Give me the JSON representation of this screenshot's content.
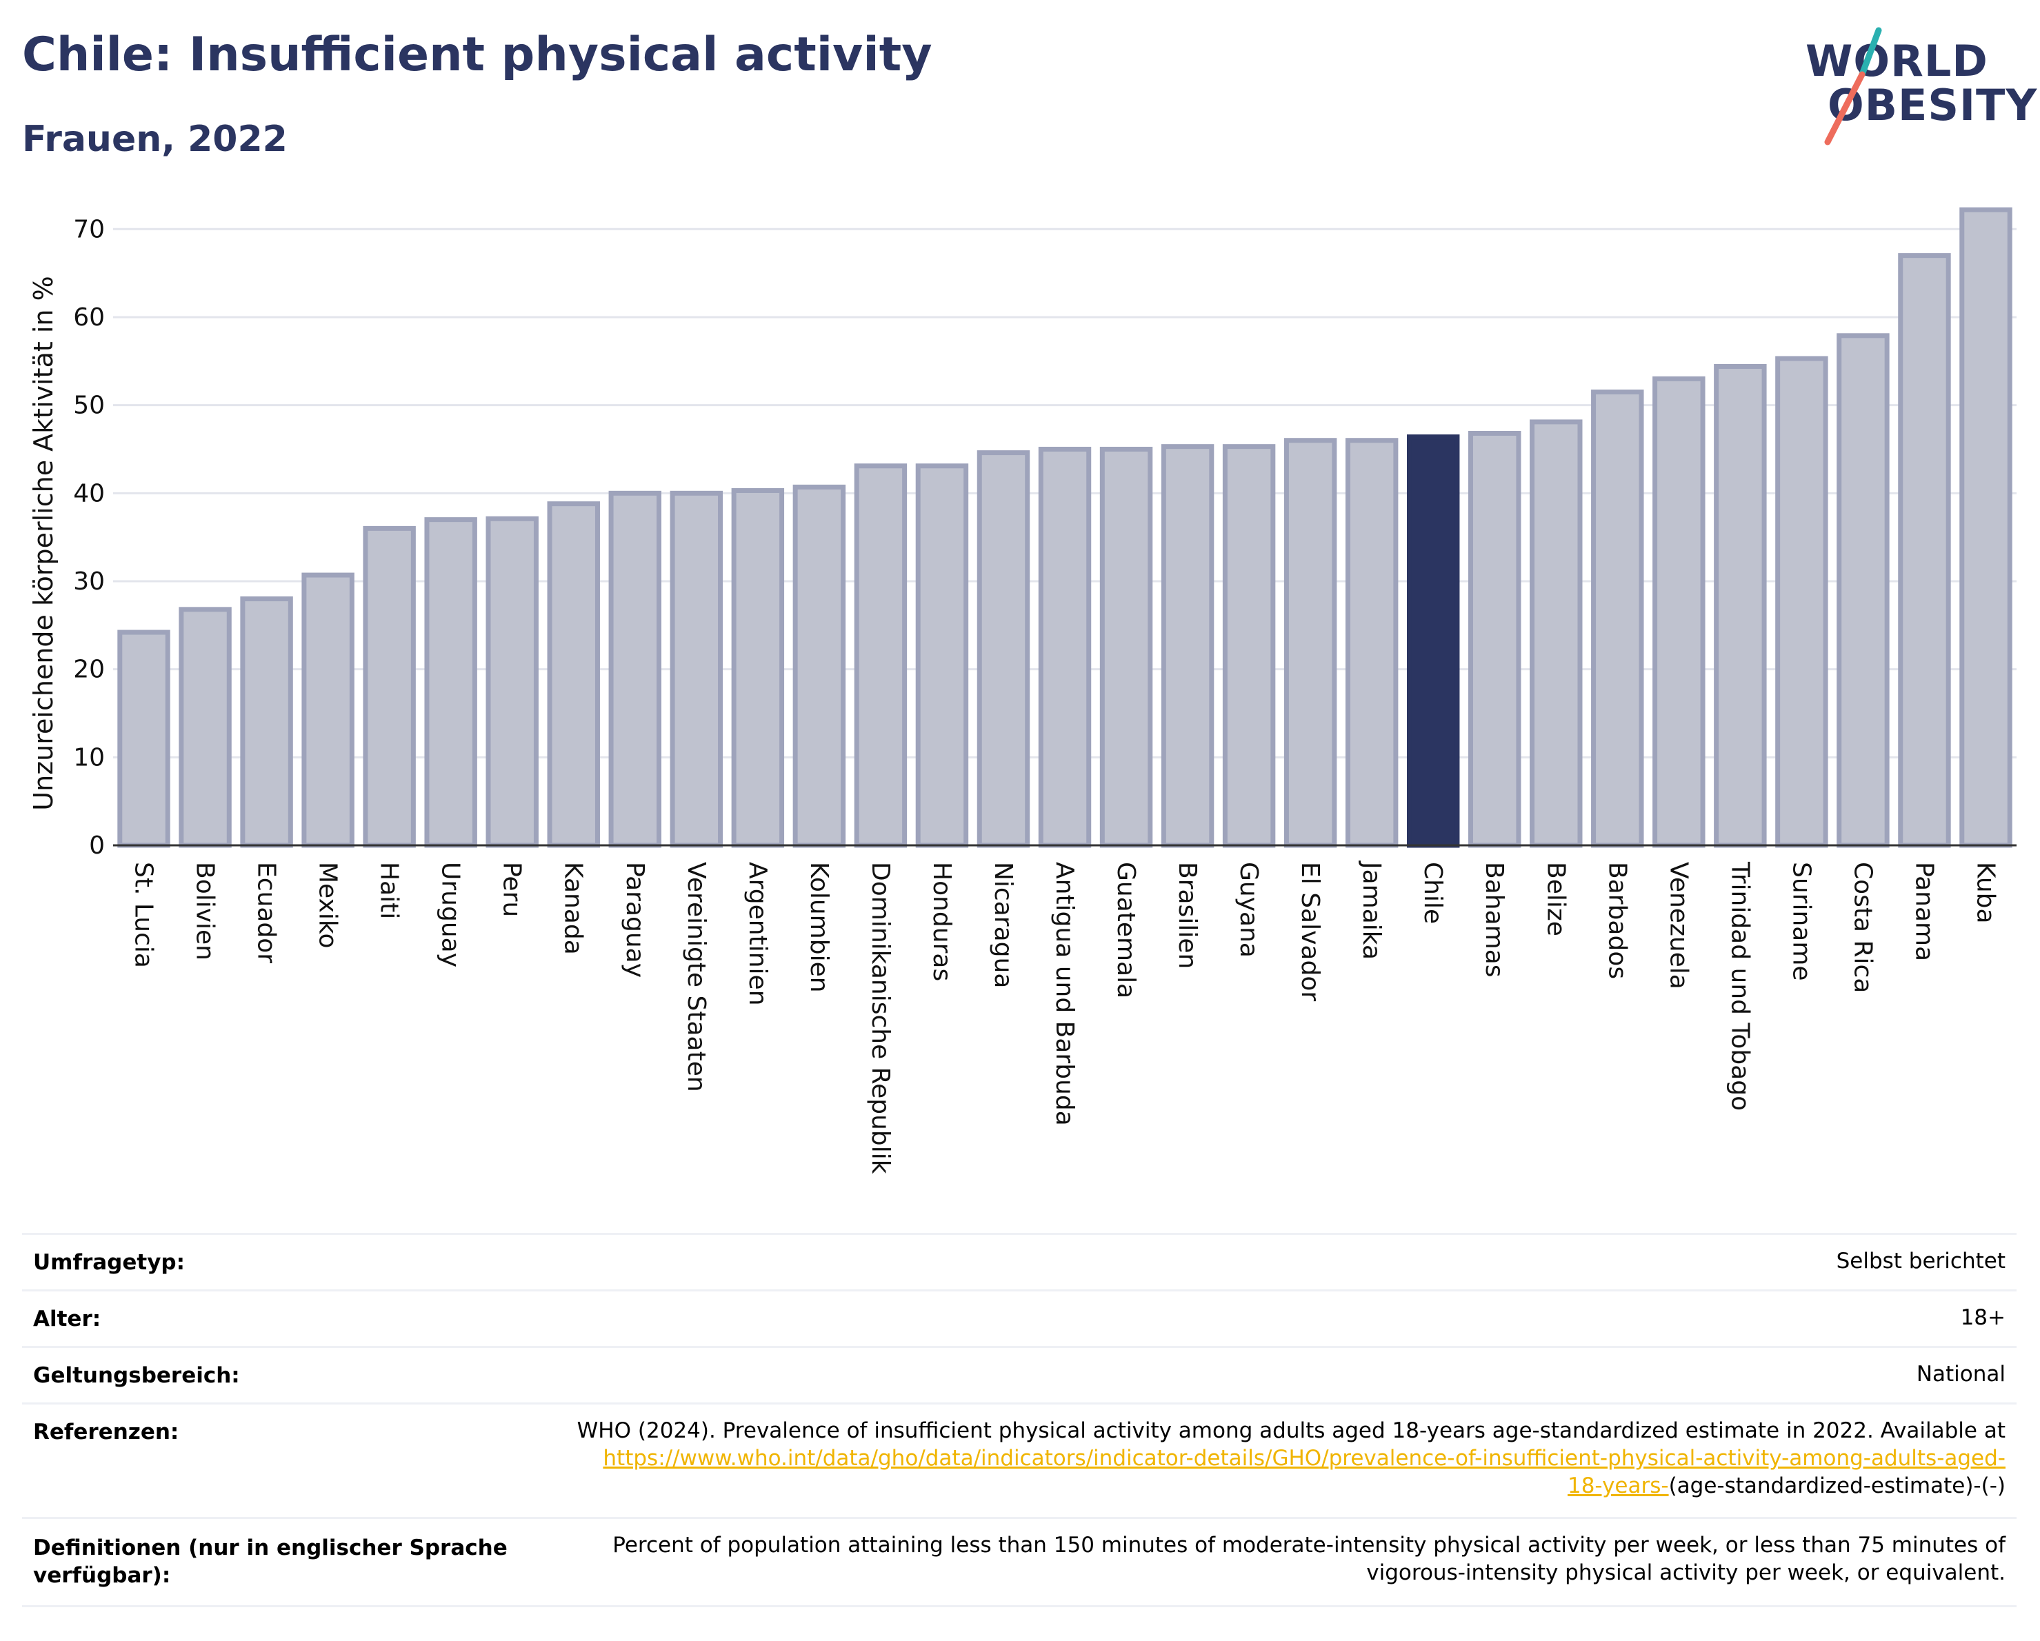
{
  "header": {
    "title": "Chile: Insufficient physical activity",
    "subtitle": "Frauen, 2022"
  },
  "logo": {
    "line1": "WORLD",
    "line2": "OBESITY"
  },
  "colors": {
    "bar": "#bfc2cf",
    "bar_edge": "#9ea3bb",
    "highlight": "#2b3561",
    "grid": "#e3e5ec",
    "title": "#2b3561"
  },
  "chart_data": {
    "type": "bar",
    "title": "Chile: Insufficient physical activity",
    "subtitle": "Frauen, 2022",
    "xlabel": "",
    "ylabel": "Unzureichende körperliche Aktivität in %",
    "ylim": [
      0,
      73
    ],
    "yticks": [
      0,
      10,
      20,
      30,
      40,
      50,
      60,
      70
    ],
    "grid": true,
    "highlight": "Chile",
    "categories": [
      "St. Lucia",
      "Bolivien",
      "Ecuador",
      "Mexiko",
      "Haiti",
      "Uruguay",
      "Peru",
      "Kanada",
      "Paraguay",
      "Vereinigte Staaten",
      "Argentinien",
      "Kolumbien",
      "Dominikanische Republik",
      "Honduras",
      "Nicaragua",
      "Antigua und Barbuda",
      "Guatemala",
      "Brasilien",
      "Guyana",
      "El Salvador",
      "Jamaika",
      "Chile",
      "Bahamas",
      "Belize",
      "Barbados",
      "Venezuela",
      "Trinidad und Tobago",
      "Suriname",
      "Costa Rica",
      "Panama",
      "Kuba"
    ],
    "values": [
      24.2,
      26.8,
      28.0,
      30.7,
      36.0,
      37.0,
      37.1,
      38.8,
      40.0,
      40.0,
      40.3,
      40.7,
      43.1,
      43.1,
      44.6,
      45.0,
      45.0,
      45.3,
      45.3,
      46.0,
      46.0,
      46.4,
      46.8,
      48.1,
      51.5,
      53.0,
      54.4,
      55.3,
      57.9,
      67.0,
      72.2
    ]
  },
  "meta": {
    "survey_label": "Umfragetyp:",
    "survey_value": "Selbst berichtet",
    "age_label": "Alter:",
    "age_value": "18+",
    "scope_label": "Geltungsbereich:",
    "scope_value": "National",
    "ref_label": "Referenzen:",
    "ref_text": "WHO (2024). Prevalence of insufficient physical activity among adults aged 18-years age-standardized estimate in 2022. Available at",
    "ref_link1": "https://www.who.int/data/gho/data/indicators/indicator-details/GHO/prevalence-of-insufficient-physical-activity-among-adults-aged-",
    "ref_link2": "18-years-",
    "ref_tail": "(age-standardized-estimate)-(-)",
    "def_label_1": "Definitionen (nur in englischer Sprache",
    "def_label_2": "verfügbar):",
    "def_text_1": "Percent of population attaining less than 150 minutes of moderate-intensity physical activity per week, or less than 75 minutes of",
    "def_text_2": "vigorous-intensity physical activity per week, or equivalent."
  }
}
